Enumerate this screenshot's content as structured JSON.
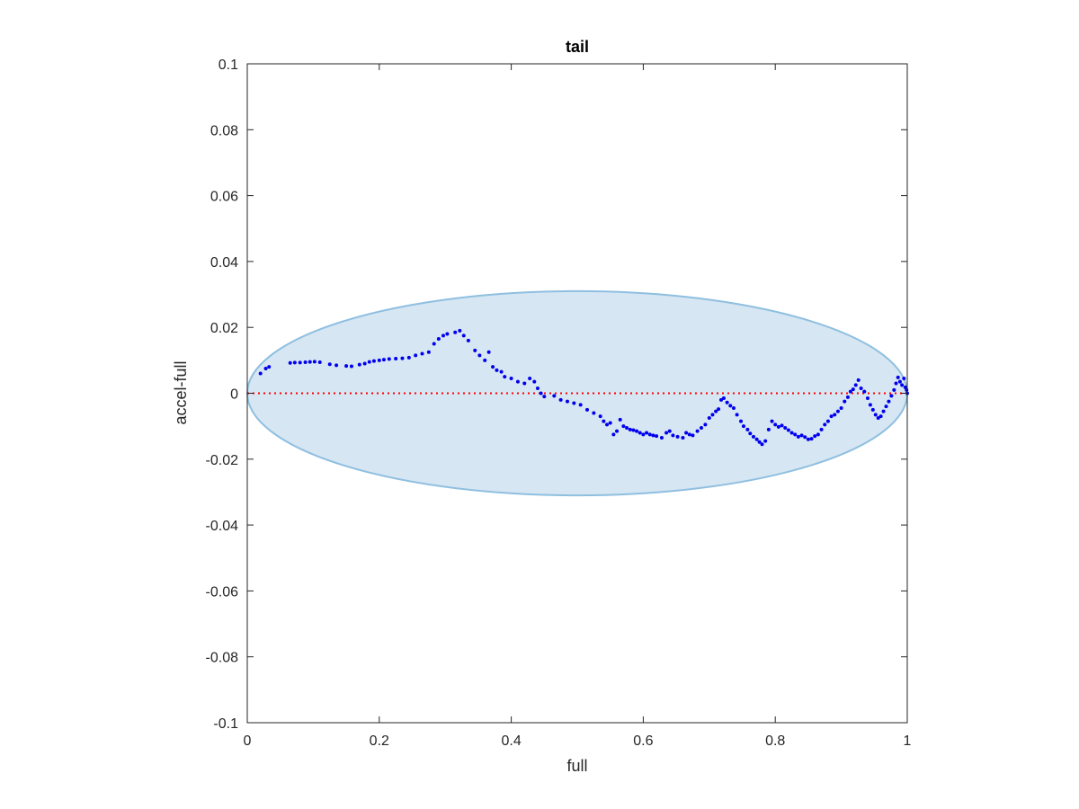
{
  "chart_data": {
    "type": "scatter",
    "title": "tail",
    "xlabel": "full",
    "ylabel": "accel-full",
    "xlim": [
      0,
      1
    ],
    "ylim": [
      -0.1,
      0.1
    ],
    "x_ticks": [
      0,
      0.2,
      0.4,
      0.6,
      0.8,
      1
    ],
    "x_tick_labels": [
      "0",
      "0.2",
      "0.4",
      "0.6",
      "0.8",
      "1"
    ],
    "y_ticks": [
      0.1,
      0.08,
      0.06,
      0.04,
      0.02,
      0,
      -0.02,
      -0.04,
      -0.06,
      -0.08,
      -0.1
    ],
    "y_tick_labels": [
      "0.1",
      "0.08",
      "0.06",
      "0.04",
      "0.02",
      "0",
      "-0.02",
      "-0.04",
      "-0.06",
      "-0.08",
      "-0.1"
    ],
    "grid": false,
    "reference_line": {
      "y": 0,
      "style": "dotted",
      "color": "#ff0000"
    },
    "ellipse": {
      "center": [
        0.5,
        0
      ],
      "rx": 0.5,
      "ry": 0.031,
      "fill": "#d6e6f3",
      "stroke": "#8fbfe0"
    },
    "colors": {
      "points": "#0000ee",
      "reference": "#ff0000",
      "axes": "#262626"
    },
    "series": [
      {
        "values": [
          [
            0.02,
            0.006
          ],
          [
            0.028,
            0.0075
          ],
          [
            0.033,
            0.008
          ],
          [
            0.065,
            0.0092
          ],
          [
            0.072,
            0.0093
          ],
          [
            0.08,
            0.0093
          ],
          [
            0.088,
            0.0094
          ],
          [
            0.095,
            0.0095
          ],
          [
            0.102,
            0.0096
          ],
          [
            0.11,
            0.0094
          ],
          [
            0.125,
            0.0088
          ],
          [
            0.135,
            0.0085
          ],
          [
            0.15,
            0.0083
          ],
          [
            0.158,
            0.0082
          ],
          [
            0.17,
            0.0087
          ],
          [
            0.178,
            0.009
          ],
          [
            0.185,
            0.0095
          ],
          [
            0.192,
            0.0098
          ],
          [
            0.2,
            0.01
          ],
          [
            0.207,
            0.0102
          ],
          [
            0.215,
            0.0104
          ],
          [
            0.225,
            0.0105
          ],
          [
            0.235,
            0.0106
          ],
          [
            0.245,
            0.0108
          ],
          [
            0.255,
            0.0115
          ],
          [
            0.265,
            0.012
          ],
          [
            0.275,
            0.0125
          ],
          [
            0.283,
            0.015
          ],
          [
            0.29,
            0.0165
          ],
          [
            0.297,
            0.0175
          ],
          [
            0.303,
            0.018
          ],
          [
            0.315,
            0.0185
          ],
          [
            0.322,
            0.019
          ],
          [
            0.328,
            0.0175
          ],
          [
            0.335,
            0.016
          ],
          [
            0.345,
            0.013
          ],
          [
            0.352,
            0.0115
          ],
          [
            0.36,
            0.01
          ],
          [
            0.366,
            0.0125
          ],
          [
            0.372,
            0.008
          ],
          [
            0.378,
            0.007
          ],
          [
            0.385,
            0.0065
          ],
          [
            0.39,
            0.005
          ],
          [
            0.4,
            0.0045
          ],
          [
            0.41,
            0.0035
          ],
          [
            0.42,
            0.003
          ],
          [
            0.428,
            0.0045
          ],
          [
            0.435,
            0.0035
          ],
          [
            0.44,
            0.0015
          ],
          [
            0.445,
            0.0
          ],
          [
            0.45,
            -0.001
          ],
          [
            0.465,
            -0.0008
          ],
          [
            0.475,
            -0.002
          ],
          [
            0.485,
            -0.0025
          ],
          [
            0.495,
            -0.003
          ],
          [
            0.505,
            -0.0035
          ],
          [
            0.515,
            -0.005
          ],
          [
            0.525,
            -0.006
          ],
          [
            0.535,
            -0.007
          ],
          [
            0.54,
            -0.0085
          ],
          [
            0.545,
            -0.0095
          ],
          [
            0.55,
            -0.009
          ],
          [
            0.555,
            -0.0125
          ],
          [
            0.56,
            -0.0115
          ],
          [
            0.565,
            -0.008
          ],
          [
            0.57,
            -0.01
          ],
          [
            0.575,
            -0.0105
          ],
          [
            0.58,
            -0.011
          ],
          [
            0.585,
            -0.0112
          ],
          [
            0.59,
            -0.0115
          ],
          [
            0.595,
            -0.012
          ],
          [
            0.6,
            -0.0125
          ],
          [
            0.605,
            -0.012
          ],
          [
            0.61,
            -0.0125
          ],
          [
            0.615,
            -0.0128
          ],
          [
            0.62,
            -0.013
          ],
          [
            0.628,
            -0.0135
          ],
          [
            0.635,
            -0.012
          ],
          [
            0.64,
            -0.0115
          ],
          [
            0.645,
            -0.0128
          ],
          [
            0.652,
            -0.0132
          ],
          [
            0.66,
            -0.0135
          ],
          [
            0.665,
            -0.012
          ],
          [
            0.67,
            -0.0125
          ],
          [
            0.675,
            -0.0128
          ],
          [
            0.682,
            -0.0115
          ],
          [
            0.688,
            -0.0105
          ],
          [
            0.694,
            -0.0095
          ],
          [
            0.7,
            -0.0075
          ],
          [
            0.705,
            -0.0065
          ],
          [
            0.71,
            -0.0055
          ],
          [
            0.714,
            -0.0048
          ],
          [
            0.718,
            -0.002
          ],
          [
            0.722,
            -0.0015
          ],
          [
            0.727,
            -0.0028
          ],
          [
            0.732,
            -0.0038
          ],
          [
            0.737,
            -0.0045
          ],
          [
            0.742,
            -0.0065
          ],
          [
            0.748,
            -0.0085
          ],
          [
            0.752,
            -0.01
          ],
          [
            0.758,
            -0.011
          ],
          [
            0.762,
            -0.0122
          ],
          [
            0.767,
            -0.0132
          ],
          [
            0.772,
            -0.014
          ],
          [
            0.776,
            -0.0148
          ],
          [
            0.78,
            -0.0155
          ],
          [
            0.785,
            -0.0145
          ],
          [
            0.79,
            -0.011
          ],
          [
            0.795,
            -0.0085
          ],
          [
            0.8,
            -0.0095
          ],
          [
            0.805,
            -0.0102
          ],
          [
            0.81,
            -0.0098
          ],
          [
            0.815,
            -0.0105
          ],
          [
            0.82,
            -0.0112
          ],
          [
            0.825,
            -0.012
          ],
          [
            0.83,
            -0.0125
          ],
          [
            0.835,
            -0.0132
          ],
          [
            0.84,
            -0.0128
          ],
          [
            0.845,
            -0.0133
          ],
          [
            0.85,
            -0.014
          ],
          [
            0.855,
            -0.0138
          ],
          [
            0.86,
            -0.013
          ],
          [
            0.865,
            -0.0125
          ],
          [
            0.87,
            -0.011
          ],
          [
            0.875,
            -0.0095
          ],
          [
            0.88,
            -0.0085
          ],
          [
            0.885,
            -0.007
          ],
          [
            0.89,
            -0.0065
          ],
          [
            0.895,
            -0.0055
          ],
          [
            0.9,
            -0.0045
          ],
          [
            0.905,
            -0.0025
          ],
          [
            0.91,
            -0.0012
          ],
          [
            0.914,
            0.0005
          ],
          [
            0.918,
            0.0012
          ],
          [
            0.922,
            0.0025
          ],
          [
            0.926,
            0.004
          ],
          [
            0.93,
            0.0015
          ],
          [
            0.935,
            0.0005
          ],
          [
            0.94,
            -0.0015
          ],
          [
            0.944,
            -0.0035
          ],
          [
            0.948,
            -0.005
          ],
          [
            0.952,
            -0.0065
          ],
          [
            0.956,
            -0.0075
          ],
          [
            0.96,
            -0.007
          ],
          [
            0.964,
            -0.0055
          ],
          [
            0.968,
            -0.004
          ],
          [
            0.972,
            -0.0025
          ],
          [
            0.976,
            -0.0008
          ],
          [
            0.98,
            0.001
          ],
          [
            0.983,
            0.003
          ],
          [
            0.986,
            0.0048
          ],
          [
            0.989,
            0.0035
          ],
          [
            0.992,
            0.0025
          ],
          [
            0.995,
            0.0045
          ],
          [
            0.997,
            0.0018
          ],
          [
            0.999,
            0.001
          ],
          [
            1.0,
            0.0
          ]
        ]
      }
    ]
  }
}
